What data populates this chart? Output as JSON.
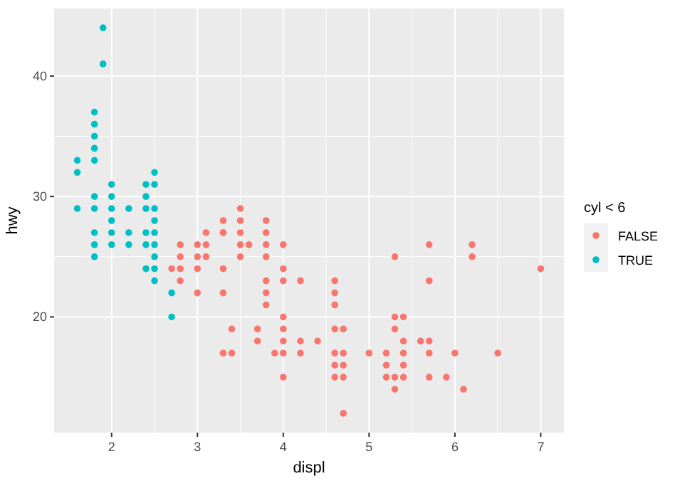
{
  "chart_data": {
    "type": "scatter",
    "xlabel": "displ",
    "ylabel": "hwy",
    "legend_title": "cyl < 6",
    "xlim": [
      1.33,
      7.27
    ],
    "ylim": [
      10.4,
      45.6
    ],
    "xticks": [
      2,
      3,
      4,
      5,
      6,
      7
    ],
    "yticks": [
      20,
      30,
      40
    ],
    "grid": true,
    "legend": "right",
    "marker": "circle",
    "series": [
      {
        "name": "FALSE",
        "color": "#f8766d",
        "x": [
          2.7,
          2.8,
          2.8,
          2.8,
          2.8,
          3.0,
          3.0,
          3.0,
          3.0,
          3.1,
          3.1,
          3.1,
          3.3,
          3.3,
          3.3,
          3.3,
          3.3,
          3.3,
          3.4,
          3.4,
          3.5,
          3.5,
          3.5,
          3.5,
          3.5,
          3.6,
          3.7,
          3.7,
          3.8,
          3.8,
          3.8,
          3.8,
          3.8,
          3.8,
          3.8,
          3.9,
          4.0,
          4.0,
          4.0,
          4.0,
          4.0,
          4.0,
          4.0,
          4.0,
          4.2,
          4.2,
          4.2,
          4.4,
          4.6,
          4.6,
          4.6,
          4.6,
          4.6,
          4.6,
          4.6,
          4.7,
          4.7,
          4.7,
          4.7,
          4.7,
          5.0,
          5.2,
          5.2,
          5.2,
          5.3,
          5.3,
          5.3,
          5.3,
          5.3,
          5.4,
          5.4,
          5.4,
          5.4,
          5.4,
          5.6,
          5.7,
          5.7,
          5.7,
          5.7,
          5.7,
          5.9,
          6.0,
          6.1,
          6.2,
          6.2,
          6.5,
          7.0
        ],
        "values": [
          24,
          26,
          25,
          24,
          23,
          26,
          25,
          24,
          22,
          27,
          26,
          25,
          28,
          27,
          27,
          24,
          22,
          17,
          19,
          17,
          29,
          28,
          27,
          26,
          25,
          26,
          19,
          18,
          28,
          27,
          26,
          25,
          23,
          22,
          21,
          17,
          26,
          24,
          23,
          20,
          19,
          18,
          17,
          15,
          23,
          18,
          17,
          18,
          23,
          22,
          21,
          19,
          17,
          16,
          15,
          19,
          17,
          16,
          15,
          12,
          17,
          17,
          16,
          15,
          25,
          20,
          19,
          15,
          14,
          20,
          18,
          17,
          16,
          15,
          18,
          26,
          23,
          18,
          17,
          15,
          15,
          17,
          14,
          26,
          25,
          17,
          24
        ]
      },
      {
        "name": "TRUE",
        "color": "#00bfc4",
        "x": [
          1.6,
          1.6,
          1.6,
          1.8,
          1.8,
          1.8,
          1.8,
          1.8,
          1.8,
          1.8,
          1.8,
          1.8,
          1.8,
          1.9,
          1.9,
          2.0,
          2.0,
          2.0,
          2.0,
          2.0,
          2.0,
          2.2,
          2.2,
          2.2,
          2.4,
          2.4,
          2.4,
          2.4,
          2.4,
          2.4,
          2.5,
          2.5,
          2.5,
          2.5,
          2.5,
          2.5,
          2.5,
          2.5,
          2.5,
          2.7,
          2.7
        ],
        "values": [
          33,
          32,
          29,
          37,
          36,
          35,
          34,
          33,
          30,
          29,
          27,
          26,
          25,
          44,
          41,
          31,
          30,
          29,
          28,
          27,
          26,
          29,
          27,
          26,
          31,
          30,
          29,
          27,
          26,
          24,
          32,
          31,
          29,
          28,
          27,
          26,
          25,
          24,
          23,
          22,
          20
        ]
      }
    ]
  }
}
